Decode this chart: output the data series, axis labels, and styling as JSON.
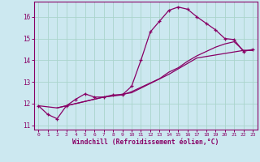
{
  "xlabel": "Windchill (Refroidissement éolien,°C)",
  "background_color": "#cce8f0",
  "grid_color": "#aad4cc",
  "line_color": "#880066",
  "xlim": [
    -0.5,
    23.5
  ],
  "ylim": [
    10.8,
    16.7
  ],
  "yticks": [
    11,
    12,
    13,
    14,
    15,
    16
  ],
  "xticks": [
    0,
    1,
    2,
    3,
    4,
    5,
    6,
    7,
    8,
    9,
    10,
    11,
    12,
    13,
    14,
    15,
    16,
    17,
    18,
    19,
    20,
    21,
    22,
    23
  ],
  "series0": {
    "x": [
      0,
      1,
      2,
      3,
      4,
      5,
      6,
      7,
      8,
      9,
      10,
      11,
      12,
      13,
      14,
      15,
      16,
      17,
      18,
      19,
      20,
      21,
      22,
      23
    ],
    "y": [
      11.9,
      11.5,
      11.3,
      11.9,
      12.2,
      12.45,
      12.3,
      12.3,
      12.4,
      12.4,
      12.8,
      14.0,
      15.3,
      15.8,
      16.3,
      16.45,
      16.35,
      16.0,
      15.7,
      15.4,
      15.0,
      14.95,
      14.4,
      14.5
    ]
  },
  "series1": {
    "x": [
      2,
      3,
      4,
      5,
      6,
      7,
      8,
      9,
      10,
      11,
      12,
      13,
      14,
      15,
      16,
      17,
      18,
      19,
      20,
      21,
      22,
      23
    ],
    "y": [
      11.8,
      11.9,
      12.0,
      12.1,
      12.2,
      12.3,
      12.35,
      12.4,
      12.55,
      12.75,
      12.95,
      13.15,
      13.45,
      13.65,
      13.95,
      14.2,
      14.4,
      14.6,
      14.75,
      14.85,
      14.45,
      14.45
    ]
  },
  "series2": {
    "x": [
      0,
      2,
      7,
      10,
      14,
      17,
      22,
      23
    ],
    "y": [
      11.9,
      11.8,
      12.3,
      12.5,
      13.35,
      14.1,
      14.45,
      14.45
    ]
  }
}
